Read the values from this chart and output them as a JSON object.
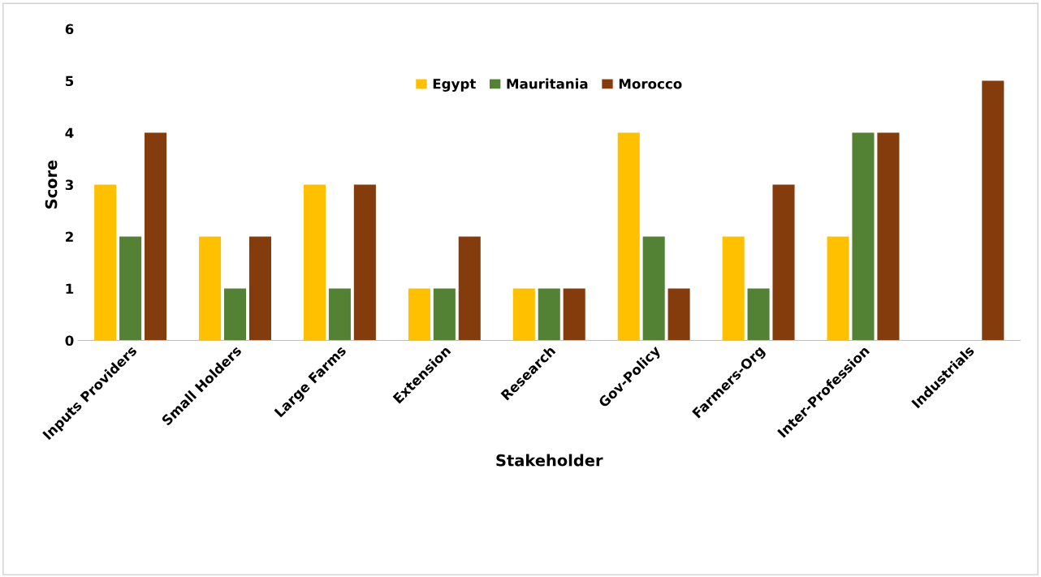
{
  "chart_data": {
    "type": "bar",
    "xlabel": "Stakeholder",
    "ylabel": "Score",
    "categories": [
      "Inputs Providers",
      "Small Holders",
      "Large Farms",
      "Extension",
      "Research",
      "Gov-Policy",
      "Farmers-Org",
      "Inter-Profession",
      "Industrials"
    ],
    "series": [
      {
        "name": "Egypt",
        "color": "#ffc000",
        "values": [
          3,
          2,
          3,
          1,
          1,
          4,
          2,
          2,
          null
        ]
      },
      {
        "name": "Mauritania",
        "color": "#548235",
        "values": [
          2,
          1,
          1,
          1,
          1,
          2,
          1,
          4,
          null
        ]
      },
      {
        "name": "Morocco",
        "color": "#843c0c",
        "values": [
          4,
          2,
          3,
          2,
          1,
          1,
          3,
          4,
          5
        ]
      }
    ],
    "ylim": [
      0,
      6
    ],
    "yticks": [
      0,
      1,
      2,
      3,
      4,
      5,
      6
    ],
    "grid": false,
    "legend": "top"
  }
}
